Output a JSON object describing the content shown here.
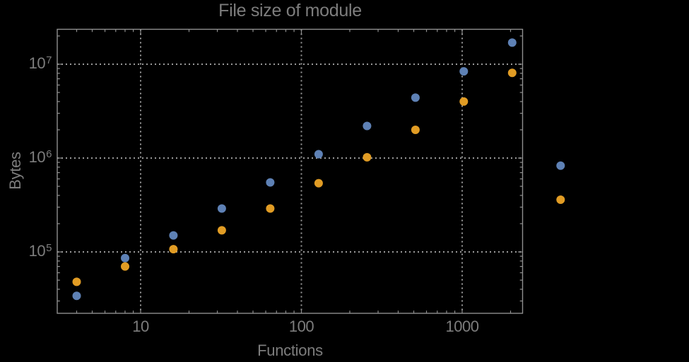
{
  "chart_data": {
    "type": "scatter",
    "title": "File size of module",
    "xlabel": "Functions",
    "ylabel": "Bytes",
    "x_scale": "log",
    "y_scale": "log",
    "xlim": [
      3,
      2380
    ],
    "ylim": [
      22200,
      23500000
    ],
    "grid": "dotted-decade-lines",
    "legend": null,
    "x_ticks": [
      {
        "value": 10,
        "label": "10"
      },
      {
        "value": 100,
        "label": "100"
      },
      {
        "value": 1000,
        "label": "1000"
      }
    ],
    "y_ticks": [
      {
        "value": 100000,
        "base": "10",
        "exp": "5"
      },
      {
        "value": 1000000,
        "base": "10",
        "exp": "6"
      },
      {
        "value": 10000000,
        "base": "10",
        "exp": "7"
      }
    ],
    "x": [
      4,
      8,
      16,
      32,
      64,
      128,
      256,
      512,
      1024,
      2048,
      4096
    ],
    "series": [
      {
        "name": "blue-series",
        "color": "#5E81B5",
        "values": [
          34000,
          86000,
          150000,
          290000,
          550000,
          1100000,
          2200000,
          4400000,
          8400000,
          17000000,
          830000
        ]
      },
      {
        "name": "orange-series",
        "color": "#E19C24",
        "values": [
          48000,
          70000,
          107000,
          170000,
          290000,
          540000,
          1020000,
          2000000,
          4000000,
          8100000,
          360000
        ]
      }
    ],
    "colors": {
      "background": "#000000",
      "frame": "#909090",
      "gridlines": "#9a9a9a",
      "text": "#7d7d7d",
      "series_blue": "#5E81B5",
      "series_orange": "#E19C24"
    }
  }
}
